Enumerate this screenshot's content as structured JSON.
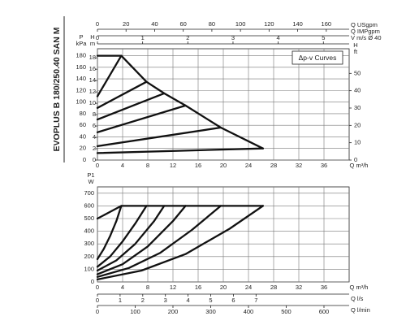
{
  "side_label": "EVOPLUS B 180/250.40 SAN M",
  "chart_data": [
    {
      "type": "line",
      "annotation": "Δp-v Curves",
      "xlabel": "Q m³/h",
      "xlim": [
        0,
        40
      ],
      "xticks": [
        0,
        4,
        8,
        12,
        16,
        20,
        24,
        28,
        32,
        36
      ],
      "ylabel": [
        "P",
        "kPa"
      ],
      "ylim": [
        0,
        192
      ],
      "yticks": [
        0,
        20,
        40,
        60,
        80,
        100,
        120,
        140,
        160,
        180
      ],
      "y2label": [
        "H",
        "ft"
      ],
      "y2lim": [
        0,
        64.2
      ],
      "y2ticks": [
        0,
        10,
        20,
        30,
        40,
        50
      ],
      "y3label": [
        "H",
        "m"
      ],
      "y3lim": [
        0,
        19.6
      ],
      "y3ticks": [
        0,
        2,
        4,
        6,
        8,
        10,
        12,
        14,
        16,
        18
      ],
      "grid": true,
      "top_axes": [
        {
          "label": "Q USgpm",
          "xlim": [
            0,
            176
          ],
          "xticks": [
            0,
            20,
            40,
            60,
            80,
            100,
            120,
            140,
            160
          ]
        },
        {
          "label": "Q IMPgpm",
          "xlim": [
            0,
            146.6
          ]
        },
        {
          "label": "V m/s Ø 40",
          "xlim": [
            0,
            5.57
          ],
          "xticks": [
            0,
            1,
            2,
            3,
            4,
            5
          ]
        }
      ],
      "series": [
        {
          "color": "#111111",
          "x": [
            0,
            3.8,
            7.8,
            10.6,
            14,
            19.6,
            26.3
          ],
          "values": [
            180,
            180,
            135,
            115,
            94,
            56,
            20
          ]
        },
        {
          "color": "#111111",
          "x": [
            0,
            3.8
          ],
          "values": [
            110,
            180
          ]
        },
        {
          "color": "#111111",
          "x": [
            0,
            7.8
          ],
          "values": [
            90,
            135
          ]
        },
        {
          "color": "#111111",
          "x": [
            0,
            10.6
          ],
          "values": [
            70,
            115
          ]
        },
        {
          "color": "#111111",
          "x": [
            0,
            14
          ],
          "values": [
            48,
            94
          ]
        },
        {
          "color": "#111111",
          "x": [
            0,
            19.6
          ],
          "values": [
            24,
            56
          ]
        },
        {
          "color": "#111111",
          "x": [
            0,
            26.3
          ],
          "values": [
            12,
            20
          ]
        }
      ]
    },
    {
      "type": "line",
      "xlabel": "Q m³/h",
      "xlim": [
        0,
        40
      ],
      "xticks": [
        0,
        4,
        8,
        12,
        16,
        20,
        24,
        28,
        32,
        36
      ],
      "ylabel": [
        "P1",
        "W"
      ],
      "ylim": [
        0,
        750
      ],
      "yticks": [
        0,
        100,
        200,
        300,
        400,
        500,
        600,
        700
      ],
      "grid": true,
      "bottom_axes": [
        {
          "label": "Q l/s",
          "xlim": [
            0,
            11.11
          ],
          "xticks": [
            0,
            1,
            2,
            3,
            4,
            5,
            6,
            7
          ]
        },
        {
          "label": "Q l/min",
          "xlim": [
            0,
            666.7
          ],
          "xticks": [
            0,
            100,
            200,
            300,
            400,
            500,
            600
          ]
        }
      ],
      "series": [
        {
          "color": "#111111",
          "x": [
            0,
            3.8,
            26.3
          ],
          "values": [
            500,
            600,
            600
          ]
        },
        {
          "color": "#111111",
          "x": [
            0,
            1,
            2,
            3,
            3.8
          ],
          "values": [
            180,
            260,
            360,
            480,
            600
          ]
        },
        {
          "color": "#111111",
          "x": [
            0,
            2,
            4,
            6,
            7.8
          ],
          "values": [
            120,
            200,
            320,
            460,
            600
          ]
        },
        {
          "color": "#111111",
          "x": [
            0,
            3,
            6,
            9,
            10.6
          ],
          "values": [
            90,
            170,
            300,
            480,
            600
          ]
        },
        {
          "color": "#111111",
          "x": [
            0,
            4,
            8,
            12,
            14
          ],
          "values": [
            60,
            140,
            280,
            480,
            600
          ]
        },
        {
          "color": "#111111",
          "x": [
            0,
            5,
            10,
            15,
            19.6
          ],
          "values": [
            40,
            110,
            230,
            410,
            600
          ]
        },
        {
          "color": "#111111",
          "x": [
            0,
            7,
            14,
            21,
            26.3
          ],
          "values": [
            20,
            90,
            220,
            420,
            600
          ]
        }
      ]
    }
  ]
}
